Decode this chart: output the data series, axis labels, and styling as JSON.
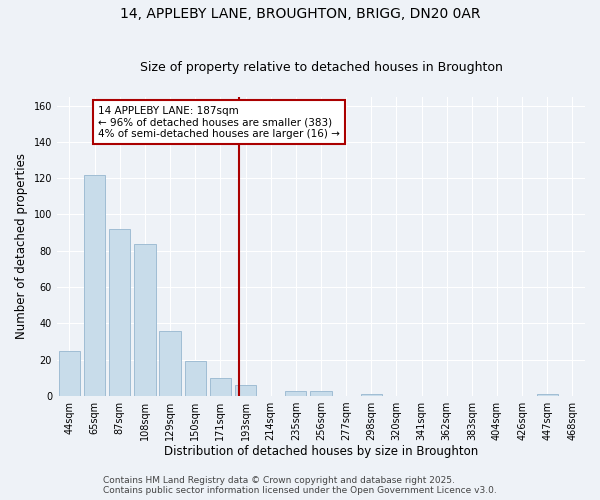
{
  "title": "14, APPLEBY LANE, BROUGHTON, BRIGG, DN20 0AR",
  "subtitle": "Size of property relative to detached houses in Broughton",
  "xlabel": "Distribution of detached houses by size in Broughton",
  "ylabel": "Number of detached properties",
  "categories": [
    "44sqm",
    "65sqm",
    "87sqm",
    "108sqm",
    "129sqm",
    "150sqm",
    "171sqm",
    "193sqm",
    "214sqm",
    "235sqm",
    "256sqm",
    "277sqm",
    "298sqm",
    "320sqm",
    "341sqm",
    "362sqm",
    "383sqm",
    "404sqm",
    "426sqm",
    "447sqm",
    "468sqm"
  ],
  "values": [
    25,
    122,
    92,
    84,
    36,
    19,
    10,
    6,
    0,
    3,
    3,
    0,
    1,
    0,
    0,
    0,
    0,
    0,
    0,
    1,
    0
  ],
  "bar_color": "#c8dcea",
  "bar_edge_color": "#a0bdd4",
  "vline_color": "#aa0000",
  "annotation_title": "14 APPLEBY LANE: 187sqm",
  "annotation_line1": "← 96% of detached houses are smaller (383)",
  "annotation_line2": "4% of semi-detached houses are larger (16) →",
  "annotation_box_color": "#ffffff",
  "annotation_border_color": "#aa0000",
  "ylim": [
    0,
    165
  ],
  "yticks": [
    0,
    20,
    40,
    60,
    80,
    100,
    120,
    140,
    160
  ],
  "footer1": "Contains HM Land Registry data © Crown copyright and database right 2025.",
  "footer2": "Contains public sector information licensed under the Open Government Licence v3.0.",
  "background_color": "#eef2f7",
  "grid_color": "#ffffff",
  "title_fontsize": 10,
  "subtitle_fontsize": 9,
  "axis_label_fontsize": 8.5,
  "tick_fontsize": 7,
  "annotation_fontsize": 7.5,
  "footer_fontsize": 6.5
}
